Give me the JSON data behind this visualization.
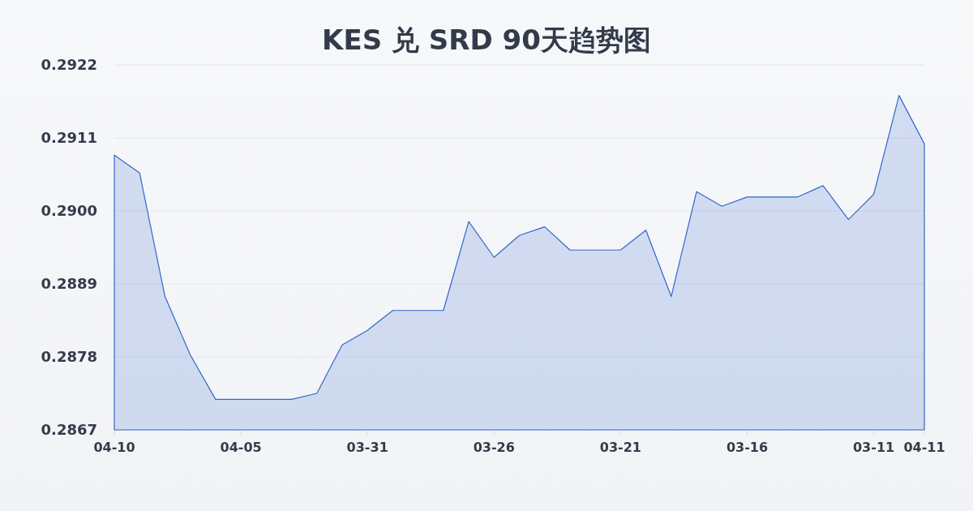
{
  "chart_data": {
    "type": "area",
    "title": "KES 兑 SRD 90天趋势图",
    "categories": [
      "04-10",
      null,
      null,
      null,
      null,
      "04-05",
      null,
      null,
      null,
      null,
      "03-31",
      null,
      null,
      null,
      null,
      "03-26",
      null,
      null,
      null,
      null,
      "03-21",
      null,
      null,
      null,
      null,
      "03-16",
      null,
      null,
      null,
      null,
      "03-11",
      null,
      "04-11"
    ],
    "values": [
      0.29084,
      0.29057,
      0.28871,
      0.28783,
      0.28716,
      0.28716,
      0.28716,
      0.28716,
      0.28725,
      0.28798,
      0.2882,
      0.2885,
      0.2885,
      0.2885,
      0.28984,
      0.2893,
      0.28963,
      0.28976,
      0.28941,
      0.28941,
      0.28941,
      0.28971,
      0.28871,
      0.29029,
      0.29007,
      0.29021,
      0.29021,
      0.29021,
      0.29038,
      0.28987,
      0.29025,
      0.29174,
      0.29101
    ],
    "color": "#3366cc",
    "ylim": [
      0.2867,
      0.2922
    ],
    "yticks": [
      0.2867,
      0.2878,
      0.2889,
      {
        "value": 0.29,
        "label": "0.2900"
      },
      0.2911,
      0.2922
    ],
    "grid": "y"
  }
}
